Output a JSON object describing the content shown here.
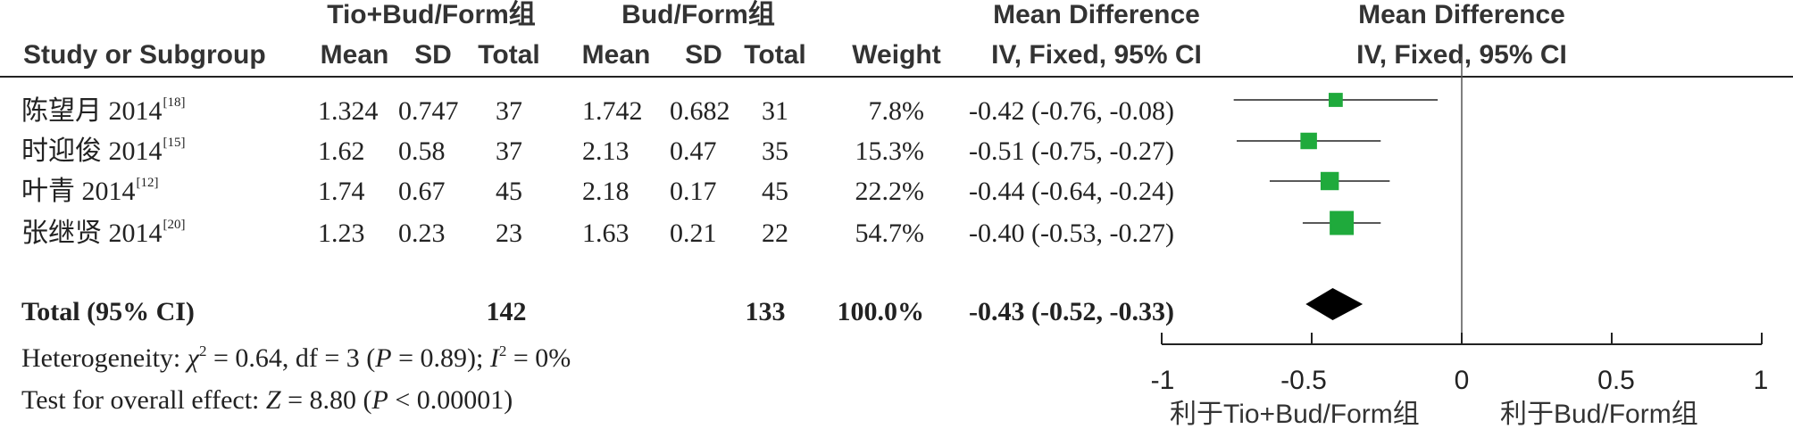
{
  "headers": {
    "exp_group": "Tio+Bud/Form组",
    "ctrl_group": "Bud/Form组",
    "md_top_table": "Mean Difference",
    "md_top_plot": "Mean Difference",
    "study": "Study or Subgroup",
    "mean": "Mean",
    "sd": "SD",
    "total": "Total",
    "weight": "Weight",
    "method_table": "IV, Fixed, 95% CI",
    "method_plot": "IV, Fixed, 95% CI"
  },
  "studies": [
    {
      "name": "陈望月 2014",
      "ref": "[18]",
      "exp_mean": "1.324",
      "exp_sd": "0.747",
      "exp_total": "37",
      "ctrl_mean": "1.742",
      "ctrl_sd": "0.682",
      "ctrl_total": "31",
      "weight": "7.8%",
      "ci_text": "-0.42 (-0.76, -0.08)"
    },
    {
      "name": "时迎俊 2014",
      "ref": "[15]",
      "exp_mean": "1.62",
      "exp_sd": "0.58",
      "exp_total": "37",
      "ctrl_mean": "2.13",
      "ctrl_sd": "0.47",
      "ctrl_total": "35",
      "weight": "15.3%",
      "ci_text": "-0.51 (-0.75, -0.27)"
    },
    {
      "name": "叶青 2014",
      "ref": "[12]",
      "exp_mean": "1.74",
      "exp_sd": "0.67",
      "exp_total": "45",
      "ctrl_mean": "2.18",
      "ctrl_sd": "0.17",
      "ctrl_total": "45",
      "weight": "22.2%",
      "ci_text": "-0.44 (-0.64, -0.24)"
    },
    {
      "name": "张继贤 2014",
      "ref": "[20]",
      "exp_mean": "1.23",
      "exp_sd": "0.23",
      "exp_total": "23",
      "ctrl_mean": "1.63",
      "ctrl_sd": "0.21",
      "ctrl_total": "22",
      "weight": "54.7%",
      "ci_text": "-0.40 (-0.53, -0.27)"
    }
  ],
  "total_row": {
    "label": "Total (95% CI)",
    "exp_total": "142",
    "ctrl_total": "133",
    "weight": "100.0%",
    "ci_text": "-0.43 (-0.52, -0.33)"
  },
  "footer": {
    "heterogeneity": {
      "prefix": "Heterogeneity: ",
      "chi": "χ",
      "chi_sup": "2",
      "chi_val": " = 0.64, df = 3 (",
      "p": "P",
      "p_val": " = 0.89); ",
      "i": "I",
      "i_sup": "2",
      "i_val": " = 0%"
    },
    "overall": {
      "prefix": "Test for overall effect: ",
      "z": "Z",
      "z_val": " = 8.80 (",
      "p": "P",
      "p_val": " < 0.00001)"
    }
  },
  "axis": {
    "tick_labels": [
      "-1",
      "-0.5",
      "0",
      "0.5",
      "1"
    ],
    "favours_left": "利于Tio+Bud/Form组",
    "favours_right": "利于Bud/Form组"
  },
  "colors": {
    "square": "#1faa3c",
    "diamond": "#000000",
    "line": "#222222"
  },
  "chart_data": {
    "type": "forest",
    "measure": "Mean Difference",
    "method": "IV, Fixed, 95% CI",
    "xlim": [
      -1,
      1
    ],
    "ticks": [
      -1,
      -0.5,
      0,
      0.5,
      1
    ],
    "studies": [
      {
        "name": "陈望月 2014",
        "md": -0.42,
        "lower": -0.76,
        "upper": -0.08,
        "weight": 7.8
      },
      {
        "name": "时迎俊 2014",
        "md": -0.51,
        "lower": -0.75,
        "upper": -0.27,
        "weight": 15.3
      },
      {
        "name": "叶青 2014",
        "md": -0.44,
        "lower": -0.64,
        "upper": -0.24,
        "weight": 22.2
      },
      {
        "name": "张继贤 2014",
        "md": -0.4,
        "lower": -0.53,
        "upper": -0.27,
        "weight": 54.7
      }
    ],
    "pooled": {
      "md": -0.43,
      "lower": -0.52,
      "upper": -0.33,
      "weight": 100.0
    }
  }
}
